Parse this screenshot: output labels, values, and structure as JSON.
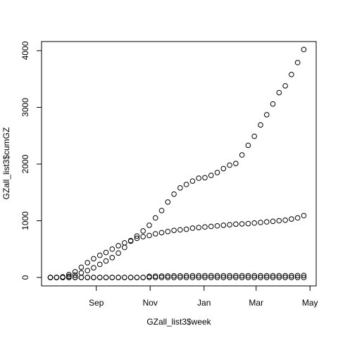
{
  "chart_data": {
    "type": "scatter",
    "x_label": "GZall_list3$week",
    "y_label": "GZall_list3$cumGZ",
    "x": [
      -52,
      -45,
      -38,
      -31,
      -24,
      -17,
      -10,
      -3,
      4,
      11,
      18,
      25,
      32,
      39,
      46,
      53,
      60,
      67,
      74,
      81,
      88,
      95,
      102,
      109,
      116,
      123,
      130,
      137,
      144,
      151,
      158,
      165,
      172,
      179,
      186,
      193,
      200,
      207,
      214,
      221,
      228,
      235
    ],
    "series": [
      {
        "color": "#000000",
        "values": [
          0,
          0,
          10,
          50,
          100,
          180,
          260,
          330,
          390,
          440,
          500,
          560,
          610,
          650,
          690,
          720,
          740,
          770,
          790,
          810,
          830,
          840,
          850,
          870,
          880,
          890,
          900,
          910,
          920,
          930,
          940,
          945,
          950,
          960,
          970,
          980,
          990,
          1000,
          1010,
          1030,
          1050,
          1090
        ]
      },
      {
        "color": "#000000",
        "values": [
          0,
          0,
          5,
          20,
          40,
          80,
          120,
          170,
          230,
          290,
          350,
          430,
          530,
          640,
          730,
          820,
          920,
          1050,
          1180,
          1330,
          1470,
          1580,
          1640,
          1700,
          1750,
          1760,
          1800,
          1850,
          1920,
          1980,
          2010,
          2160,
          2330,
          2490,
          2690,
          2870,
          3060,
          3260,
          3380,
          3580,
          3790,
          4020
        ]
      },
      {
        "color": "#000000",
        "values": [
          0,
          0,
          0,
          0,
          0,
          0,
          0,
          0,
          0,
          0,
          0,
          0,
          0,
          0,
          0,
          0,
          20,
          22,
          25,
          26,
          28,
          28,
          30,
          30,
          30,
          30,
          30,
          30,
          30,
          30,
          30,
          30,
          30,
          30,
          30,
          30,
          30,
          30,
          30,
          30,
          32,
          35
        ]
      },
      {
        "color": "#000000",
        "values": [
          0,
          0,
          0,
          0,
          0,
          0,
          0,
          0,
          0,
          0,
          0,
          0,
          0,
          0,
          0,
          0,
          0,
          0,
          0,
          0,
          0,
          0,
          0,
          0,
          0,
          0,
          0,
          0,
          0,
          0,
          0,
          0,
          0,
          0,
          0,
          0,
          0,
          0,
          0,
          0,
          0,
          0
        ]
      }
    ],
    "xlim": [
      -62,
      249
    ],
    "xticks": [
      {
        "value": 0,
        "label": "Sep"
      },
      {
        "value": 61,
        "label": "Nov"
      },
      {
        "value": 122,
        "label": "Jan"
      },
      {
        "value": 181,
        "label": "Mar"
      },
      {
        "value": 242,
        "label": "May"
      }
    ],
    "ylim": [
      -149,
      4161
    ],
    "yticks": [
      0,
      1000,
      2000,
      3000,
      4000
    ]
  }
}
